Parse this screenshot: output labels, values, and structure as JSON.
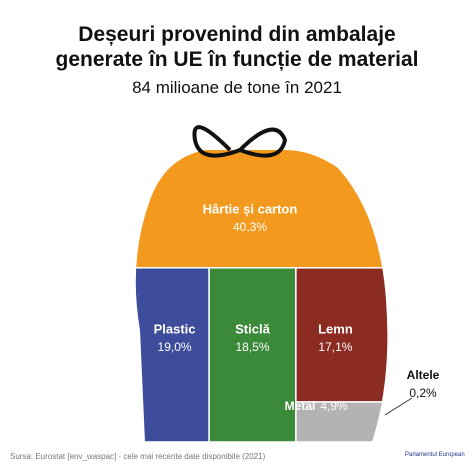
{
  "chart_data": {
    "type": "bag",
    "title": "Deșeuri provenind din ambalaje generate în UE în funcție de material",
    "subtitle": "84 milioane de tone în 2021",
    "categories": [
      "Hârtie și carton",
      "Plastic",
      "Sticlă",
      "Lemn",
      "Metal",
      "Altele"
    ],
    "values": [
      40.3,
      19.0,
      18.5,
      17.1,
      4.9,
      0.2
    ],
    "value_labels": [
      "40,3%",
      "19,0%",
      "18,5%",
      "17,1%",
      "4,9%",
      "0,2%"
    ],
    "colors": [
      "#f39a1e",
      "#3e4c9c",
      "#3a8a3a",
      "#8c2b22",
      "#b3b3b3",
      "#d9d9d9"
    ],
    "source": "Sursa: Eurostat [env_waspac] · cele mai recente date disponibile (2021)",
    "publisher": "Parlamentul European"
  }
}
